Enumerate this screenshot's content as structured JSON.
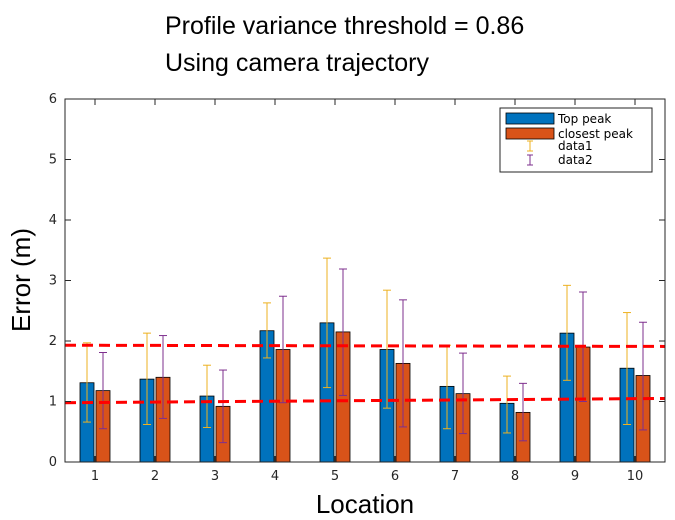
{
  "chart_data": {
    "type": "bar",
    "title": [
      "Profile variance threshold = 0.86",
      "Using camera trajectory"
    ],
    "xlabel": "Location",
    "ylabel": "Error (m)",
    "categories": [
      "1",
      "2",
      "3",
      "4",
      "5",
      "6",
      "7",
      "8",
      "9",
      "10"
    ],
    "ylim": [
      0,
      6
    ],
    "yticks": [
      0,
      1,
      2,
      3,
      4,
      5,
      6
    ],
    "grid": false,
    "legend_position": "top-right",
    "series": [
      {
        "name": "Top peak",
        "color": "#0072BD",
        "values": [
          1.31,
          1.37,
          1.09,
          2.17,
          2.3,
          1.86,
          1.25,
          0.97,
          2.13,
          1.55
        ],
        "error_label": "data1",
        "error_color": "#EDB120",
        "error_low": [
          0.66,
          0.62,
          0.57,
          1.72,
          1.23,
          0.89,
          0.55,
          0.48,
          1.35,
          0.62
        ],
        "error_high": [
          1.97,
          2.13,
          1.6,
          2.63,
          3.37,
          2.84,
          1.93,
          1.42,
          2.92,
          2.47
        ]
      },
      {
        "name": "closest peak",
        "color": "#D95319",
        "values": [
          1.18,
          1.4,
          0.92,
          1.86,
          2.15,
          1.63,
          1.13,
          0.82,
          1.9,
          1.43
        ],
        "error_label": "data2",
        "error_color": "#7E2F8E",
        "error_low": [
          0.55,
          0.72,
          0.32,
          0.98,
          1.1,
          0.58,
          0.47,
          0.35,
          1.0,
          0.53
        ],
        "error_high": [
          1.81,
          2.09,
          1.52,
          2.74,
          3.19,
          2.68,
          1.8,
          1.3,
          2.81,
          2.31
        ]
      }
    ],
    "reference_lines": [
      {
        "color": "#FF0000",
        "style": "dashed",
        "y_start": 1.93,
        "y_end": 1.91
      },
      {
        "color": "#FF0000",
        "style": "dashed",
        "y_start": 0.98,
        "y_end": 1.05
      }
    ]
  }
}
